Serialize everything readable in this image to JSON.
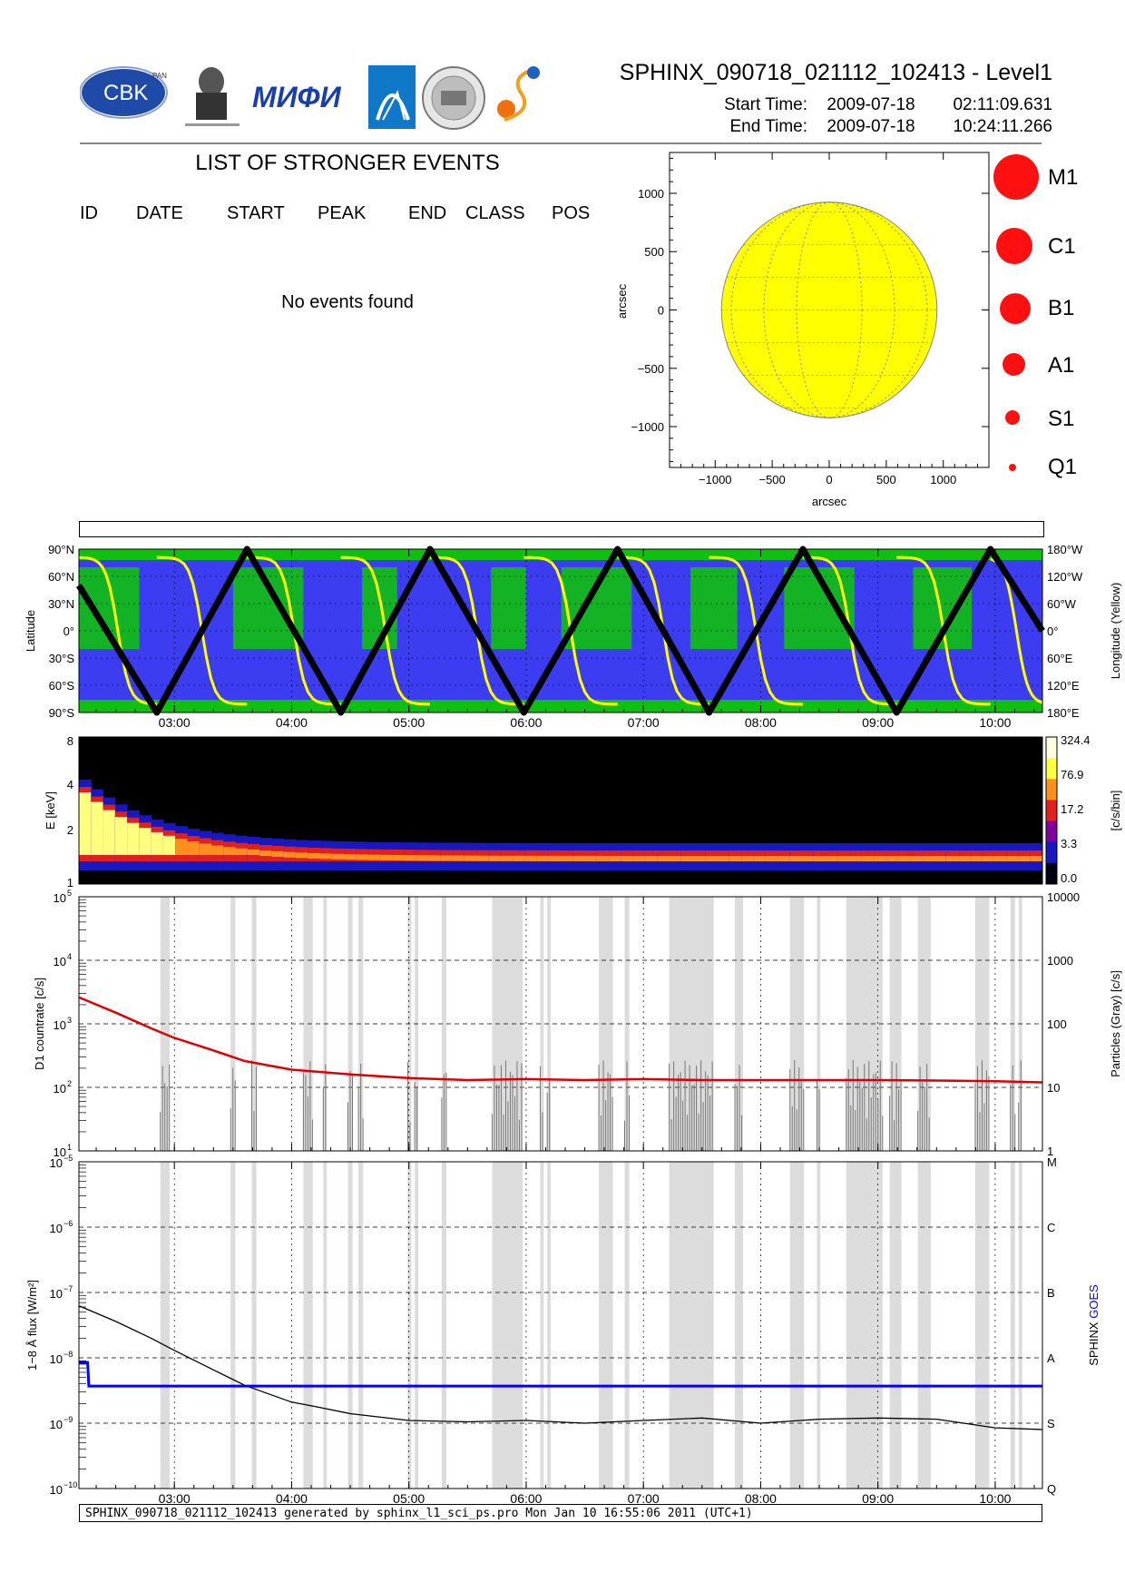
{
  "header": {
    "title": "SPHINX_090718_021112_102413 - Level1",
    "start_label": "Start Time:",
    "start_date": "2009-07-18",
    "start_time": "02:11:09.631",
    "end_label": "End Time:",
    "end_date": "2009-07-18",
    "end_time": "10:24:11.266",
    "logos": [
      {
        "name": "cbk-logo",
        "text": "CBK",
        "subtext": "PAN"
      },
      {
        "name": "lebedev-logo",
        "text": "P.N. Lebedev Physical Institute of the Russian Academy of Science"
      },
      {
        "name": "mifi-logo",
        "text": "МИФИ"
      },
      {
        "name": "agency-logo"
      },
      {
        "name": "seal-logo"
      },
      {
        "name": "sun-logo"
      }
    ]
  },
  "events": {
    "title": "LIST OF STRONGER EVENTS",
    "columns": [
      "ID",
      "DATE",
      "START",
      "PEAK",
      "END",
      "CLASS",
      "POS"
    ],
    "empty_message": "No events found"
  },
  "legend": {
    "classes": [
      "M1",
      "C1",
      "B1",
      "A1",
      "S1",
      "Q1"
    ],
    "color": "#ff1010"
  },
  "footer": {
    "text": "SPHINX_090718_021112_102413 generated by sphinx_l1_sci_ps.pro Mon Jan 10 16:55:06 2011 (UTC+1)"
  },
  "chart_data": [
    {
      "type": "scatter",
      "name": "sun-disk-map",
      "xlabel": "arcsec",
      "ylabel": "arcsec",
      "xlim": [
        -1400,
        1400
      ],
      "ylim": [
        -1350,
        1350
      ],
      "x_ticks": [
        "−1000",
        "−500",
        "0",
        "500",
        "1000"
      ],
      "y_ticks": [
        "1000",
        "500",
        "0",
        "−500",
        "−1000"
      ],
      "disk_radius": 945,
      "disk_color": "#ffff00",
      "points": []
    },
    {
      "type": "line",
      "name": "orbit-track",
      "ylabel_left": "Latitude",
      "ylabel_right": "Longitude (Yellow)",
      "lat_ticks": [
        "90°N",
        "60°N",
        "30°N",
        "0°",
        "30°S",
        "60°S",
        "90°S"
      ],
      "lon_ticks": [
        "180°W",
        "120°W",
        "60°W",
        "0°",
        "60°E",
        "120°E",
        "180°E"
      ],
      "x_ticks": [
        "03:00",
        "04:00",
        "05:00",
        "06:00",
        "07:00",
        "08:00",
        "09:00",
        "10:00"
      ],
      "xlim_hours": [
        2.186,
        10.403
      ],
      "background_colors": {
        "sky": "#3c3cf0",
        "region": "#10c010"
      },
      "latitude_track": [
        {
          "t": 2.186,
          "lat": 50
        },
        {
          "t": 2.85,
          "lat": -90
        },
        {
          "t": 3.62,
          "lat": 90
        },
        {
          "t": 4.42,
          "lat": -90
        },
        {
          "t": 5.18,
          "lat": 90
        },
        {
          "t": 5.98,
          "lat": -90
        },
        {
          "t": 6.78,
          "lat": 90
        },
        {
          "t": 7.56,
          "lat": -90
        },
        {
          "t": 8.36,
          "lat": 90
        },
        {
          "t": 9.16,
          "lat": -90
        },
        {
          "t": 9.96,
          "lat": 90
        },
        {
          "t": 10.403,
          "lat": 0
        }
      ],
      "longitude_track_color": "#ffff00"
    },
    {
      "type": "heatmap",
      "name": "spectrogram",
      "ylabel": "E [keV]",
      "y_ticks": [
        "8",
        "4",
        "2",
        "1"
      ],
      "colorbar_label": "[c/s/bin]",
      "colorbar_ticks": [
        "324.4",
        "76.9",
        "17.2",
        "3.3",
        "0.0"
      ]
    },
    {
      "type": "line",
      "name": "d1-countrate",
      "ylabel_left": "D1 countrate [c/s]",
      "ylabel_right": "Particles (Gray) [c/s]",
      "y_ticks_left": [
        "10",
        "10",
        "10",
        "10",
        "10"
      ],
      "y_ticks_left_exp": [
        "5",
        "4",
        "3",
        "2",
        "1"
      ],
      "y_ticks_right": [
        "10000",
        "1000",
        "100",
        "10",
        "1"
      ],
      "ylim": [
        10,
        100000
      ],
      "series": [
        {
          "name": "D1",
          "color": "#e00000",
          "points": [
            [
              2.19,
              2600
            ],
            [
              2.5,
              1500
            ],
            [
              2.8,
              850
            ],
            [
              3.0,
              600
            ],
            [
              3.3,
              400
            ],
            [
              3.6,
              260
            ],
            [
              4.0,
              190
            ],
            [
              4.5,
              160
            ],
            [
              5.0,
              140
            ],
            [
              5.5,
              130
            ],
            [
              6.0,
              135
            ],
            [
              6.5,
              130
            ],
            [
              7.0,
              135
            ],
            [
              7.5,
              130
            ],
            [
              8.0,
              130
            ],
            [
              8.5,
              130
            ],
            [
              9.0,
              130
            ],
            [
              9.5,
              128
            ],
            [
              10.0,
              125
            ],
            [
              10.4,
              120
            ]
          ]
        }
      ]
    },
    {
      "type": "line",
      "name": "flux-1-8A",
      "ylabel_left": "1−8 Å flux [W/m²]",
      "ylabel_right": "SPHINX GOES",
      "y_ticks_left": [
        "10",
        "10",
        "10",
        "10",
        "10",
        "10"
      ],
      "y_ticks_left_exp": [
        "−5",
        "−6",
        "−7",
        "−8",
        "−9",
        "−10"
      ],
      "class_ticks": [
        "M",
        "C",
        "B",
        "A",
        "S",
        "Q"
      ],
      "ylim": [
        1e-10,
        1e-05
      ],
      "series": [
        {
          "name": "SPHINX",
          "color": "#000000",
          "points": [
            [
              2.19,
              6.2e-08
            ],
            [
              2.5,
              3.6e-08
            ],
            [
              2.8,
              2e-08
            ],
            [
              3.0,
              1.3e-08
            ],
            [
              3.3,
              7e-09
            ],
            [
              3.6,
              3.8e-09
            ],
            [
              4.0,
              2.1e-09
            ],
            [
              4.2,
              1.8e-09
            ],
            [
              4.5,
              1.4e-09
            ],
            [
              5.0,
              1.1e-09
            ],
            [
              5.5,
              1.05e-09
            ],
            [
              6.0,
              1.1e-09
            ],
            [
              6.5,
              1e-09
            ],
            [
              7.0,
              1.1e-09
            ],
            [
              7.5,
              1.2e-09
            ],
            [
              8.0,
              1e-09
            ],
            [
              8.5,
              1.15e-09
            ],
            [
              9.0,
              1.2e-09
            ],
            [
              9.5,
              1.15e-09
            ],
            [
              10.0,
              8.5e-10
            ],
            [
              10.4,
              8e-10
            ]
          ]
        },
        {
          "name": "GOES",
          "color": "#0000ff",
          "points": [
            [
              2.19,
              8.5e-09
            ],
            [
              2.26,
              8.5e-09
            ],
            [
              2.27,
              3.7e-09
            ],
            [
              10.403,
              3.7e-09
            ]
          ]
        }
      ]
    }
  ],
  "gaps_hours": [
    [
      2.88,
      2.96
    ],
    [
      3.48,
      3.52
    ],
    [
      3.66,
      3.7
    ],
    [
      4.1,
      4.18
    ],
    [
      4.27,
      4.3
    ],
    [
      4.48,
      4.52
    ],
    [
      4.57,
      4.61
    ],
    [
      4.99,
      5.02
    ],
    [
      5.05,
      5.08
    ],
    [
      5.28,
      5.32
    ],
    [
      5.71,
      5.97
    ],
    [
      6.12,
      6.15
    ],
    [
      6.18,
      6.21
    ],
    [
      6.62,
      6.74
    ],
    [
      6.84,
      6.88
    ],
    [
      7.22,
      7.6
    ],
    [
      7.78,
      7.85
    ],
    [
      8.25,
      8.37
    ],
    [
      8.48,
      8.51
    ],
    [
      8.73,
      9.04
    ],
    [
      9.1,
      9.2
    ],
    [
      9.34,
      9.45
    ],
    [
      9.83,
      9.95
    ],
    [
      10.13,
      10.17
    ],
    [
      10.2,
      10.23
    ]
  ]
}
